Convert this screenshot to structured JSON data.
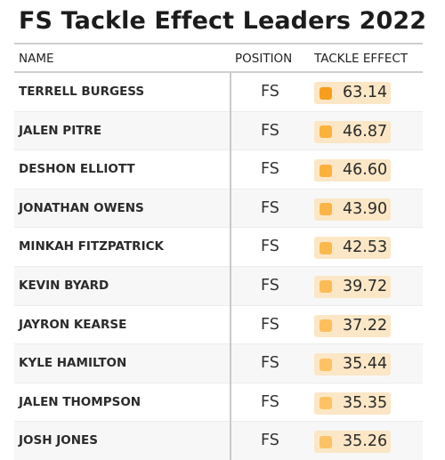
{
  "title": "FS Tackle Effect Leaders 2022",
  "headers": {
    "name": "NAME",
    "position": "POSITION",
    "tackle_effect": "TACKLE EFFECT"
  },
  "rows": [
    {
      "name": "TERRELL BURGESS",
      "position": "FS",
      "value": "63.14",
      "dot_color": "#f99d1c"
    },
    {
      "name": "JALEN PITRE",
      "position": "FS",
      "value": "46.87",
      "dot_color": "#fbb13c"
    },
    {
      "name": "DESHON ELLIOTT",
      "position": "FS",
      "value": "46.60",
      "dot_color": "#fbb13c"
    },
    {
      "name": "JONATHAN OWENS",
      "position": "FS",
      "value": "43.90",
      "dot_color": "#fbb546"
    },
    {
      "name": "MINKAH FITZPATRICK",
      "position": "FS",
      "value": "42.53",
      "dot_color": "#fbb84c"
    },
    {
      "name": "KEVIN BYARD",
      "position": "FS",
      "value": "39.72",
      "dot_color": "#fcbc55"
    },
    {
      "name": "JAYRON KEARSE",
      "position": "FS",
      "value": "37.22",
      "dot_color": "#fcbf5c"
    },
    {
      "name": "KYLE HAMILTON",
      "position": "FS",
      "value": "35.44",
      "dot_color": "#fcc264"
    },
    {
      "name": "JALEN THOMPSON",
      "position": "FS",
      "value": "35.35",
      "dot_color": "#fcc264"
    },
    {
      "name": "JOSH JONES",
      "position": "FS",
      "value": "35.26",
      "dot_color": "#fcc366"
    }
  ]
}
